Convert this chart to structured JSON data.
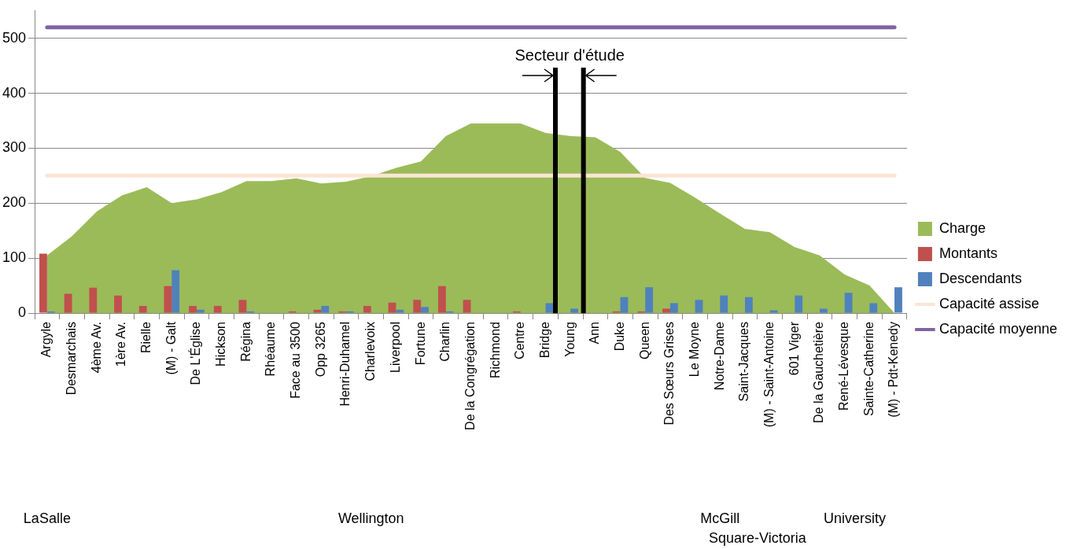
{
  "chart_data": {
    "type": "area",
    "categories": [
      "Argyle",
      "Desmarchais",
      "4ème Av.",
      "1ère Av.",
      "Rielle",
      "(M) - Galt",
      "De L'Église",
      "Hickson",
      "Régina",
      "Rhéaume",
      "Face au 3500",
      "Opp 3265",
      "Henri-Duhamel",
      "Charlevoix",
      "Liverpool",
      "Fortune",
      "Charlin",
      "De la Congrégation",
      "Richmond",
      "Centre",
      "Bridge",
      "Young",
      "Ann",
      "Duke",
      "Queen",
      "Des Sœurs Grises",
      "Le Moyne",
      "Notre-Dame",
      "Saint-Jacques",
      "(M) - Saint-Antoine",
      "601 Viger",
      "De la Gauchetière",
      "René-Lévesque",
      "Sainte-Catherine",
      "(M) - Pdt-Kenedy"
    ],
    "series": [
      {
        "name": "Charge",
        "color": "#9bbb59",
        "values": [
          105,
          140,
          185,
          214,
          229,
          200,
          207,
          220,
          240,
          240,
          245,
          236,
          239,
          249,
          264,
          276,
          322,
          345,
          345,
          345,
          328,
          322,
          320,
          293,
          246,
          237,
          210,
          181,
          153,
          147,
          120,
          105,
          70,
          50,
          0
        ]
      },
      {
        "name": "Montants",
        "type": "bar",
        "color": "#c0504d",
        "values": [
          108,
          35,
          46,
          32,
          13,
          49,
          13,
          13,
          24,
          0,
          3,
          6,
          3,
          13,
          19,
          24,
          49,
          24,
          0,
          3,
          0,
          0,
          0,
          3,
          3,
          8,
          0,
          0,
          0,
          0,
          0,
          0,
          0,
          0,
          0
        ]
      },
      {
        "name": "Descendants",
        "type": "bar",
        "color": "#4f81bd",
        "values": [
          3,
          0,
          0,
          0,
          0,
          78,
          6,
          0,
          3,
          0,
          0,
          13,
          3,
          0,
          6,
          11,
          3,
          0,
          0,
          0,
          18,
          8,
          0,
          29,
          47,
          18,
          24,
          32,
          29,
          5,
          32,
          8,
          37,
          18,
          47
        ]
      },
      {
        "name": "Capacité assise",
        "type": "line",
        "color": "#fbe5d6",
        "values": [
          250,
          250,
          250,
          250,
          250,
          250,
          250,
          250,
          250,
          250,
          250,
          250,
          250,
          250,
          250,
          250,
          250,
          250,
          250,
          250,
          250,
          250,
          250,
          250,
          250,
          250,
          250,
          250,
          250,
          250,
          250,
          250,
          250,
          250,
          250
        ]
      },
      {
        "name": "Capacité moyenne",
        "type": "line",
        "color": "#8064a2",
        "values": [
          520,
          520,
          520,
          520,
          520,
          520,
          520,
          520,
          520,
          520,
          520,
          520,
          520,
          520,
          520,
          520,
          520,
          520,
          520,
          520,
          520,
          520,
          520,
          520,
          520,
          520,
          520,
          520,
          520,
          520,
          520,
          520,
          520,
          520,
          520
        ]
      }
    ],
    "ylim": [
      0,
      550
    ],
    "yticks": [
      0,
      100,
      200,
      300,
      400,
      500
    ],
    "grid": "y",
    "legend": "right",
    "annotations": [
      "Secteur d'étude",
      "LaSalle",
      "Wellington",
      "McGill",
      "Square-Victoria",
      "University"
    ]
  }
}
